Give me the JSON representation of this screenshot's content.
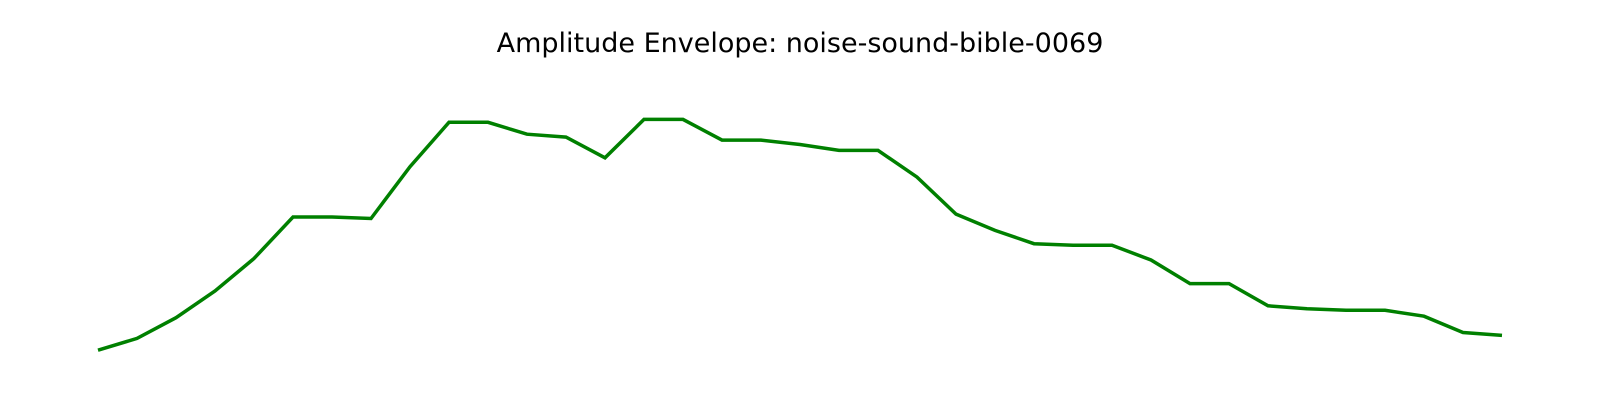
{
  "chart_data": {
    "type": "line",
    "title": "Amplitude Envelope: noise-sound-bible-0069",
    "xlabel": "",
    "ylabel": "",
    "axes_visible": false,
    "grid": false,
    "ylim": [
      0,
      1
    ],
    "series": [
      {
        "color": "#008000",
        "values": [
          0.06,
          0.1,
          0.17,
          0.26,
          0.37,
          0.51,
          0.51,
          0.505,
          0.68,
          0.83,
          0.83,
          0.79,
          0.78,
          0.71,
          0.84,
          0.84,
          0.77,
          0.77,
          0.755,
          0.735,
          0.735,
          0.645,
          0.52,
          0.465,
          0.42,
          0.415,
          0.415,
          0.365,
          0.285,
          0.285,
          0.21,
          0.2,
          0.195,
          0.195,
          0.175,
          0.12,
          0.11
        ]
      }
    ]
  }
}
